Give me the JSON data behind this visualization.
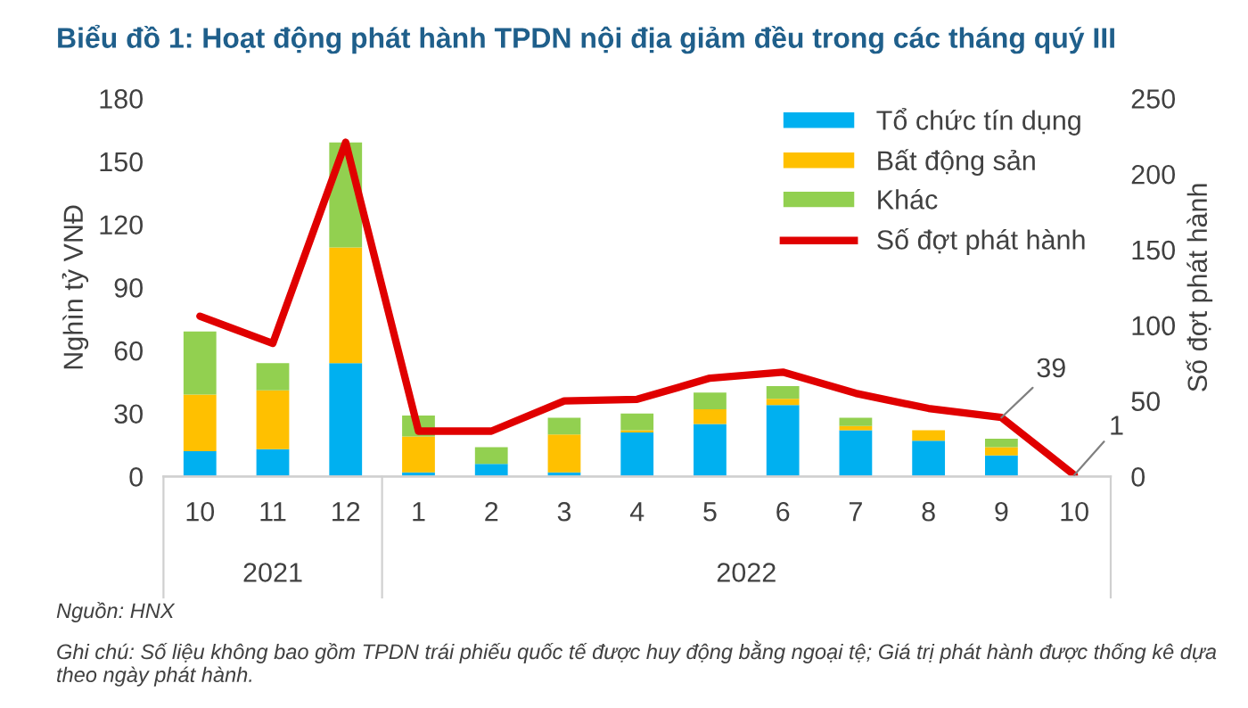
{
  "chart_data": {
    "type": "bar",
    "title": "Biểu đồ 1: Hoạt động phát hành TPDN nội địa giảm đều trong các tháng quý III",
    "categories": [
      "10",
      "11",
      "12",
      "1",
      "2",
      "3",
      "4",
      "5",
      "6",
      "7",
      "8",
      "9",
      "10"
    ],
    "stacked": true,
    "series": [
      {
        "name": "Tổ chức tín dụng",
        "color": "#00b0f0",
        "values": [
          12,
          13,
          54,
          2,
          6,
          2,
          21,
          25,
          34,
          22,
          17,
          10,
          0
        ]
      },
      {
        "name": "Bất động sản",
        "color": "#ffc000",
        "values": [
          27,
          28,
          55,
          17,
          0,
          18,
          1,
          7,
          3,
          2,
          5,
          4,
          0
        ]
      },
      {
        "name": "Khác",
        "color": "#92d050",
        "values": [
          30,
          13,
          50,
          10,
          8,
          8,
          8,
          8,
          6,
          4,
          0,
          4,
          0
        ]
      },
      {
        "name": "Số đợt phát hành",
        "type": "line",
        "axis": "y2",
        "color": "#e00000",
        "values": [
          106,
          88,
          221,
          30,
          30,
          50,
          51,
          65,
          69,
          55,
          45,
          39,
          1
        ],
        "value_labels": [
          null,
          null,
          null,
          null,
          null,
          null,
          null,
          null,
          null,
          null,
          null,
          "39",
          "1"
        ]
      }
    ],
    "ylabel": "Nghìn tỷ VNĐ",
    "y2label": "Số đợt phát hành",
    "ylim": [
      0,
      180
    ],
    "yticks": [
      0,
      30,
      60,
      90,
      120,
      150,
      180
    ],
    "y2lim": [
      0,
      250
    ],
    "y2ticks": [
      0,
      50,
      100,
      150,
      200,
      250
    ],
    "grid": false,
    "legend": "top right",
    "annotations": [
      "2021",
      "2022",
      "Nguồn: HNX",
      "Ghi chú: Số liệu không bao gồm TPDN trái phiếu quốc tế được huy động bằng ngoại tệ; Giá trị phát hành được thống kê dựa theo ngày phát hành."
    ]
  }
}
